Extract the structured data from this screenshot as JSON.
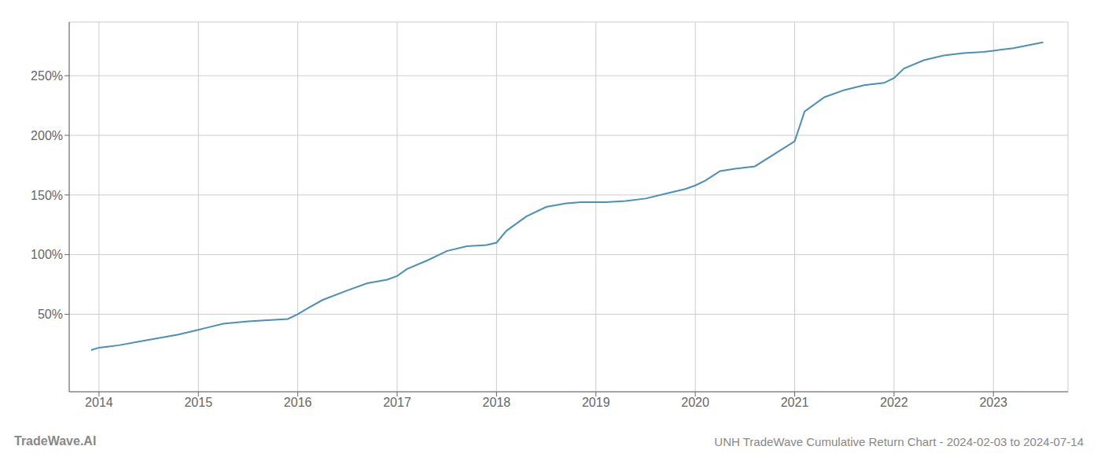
{
  "chart_data": {
    "type": "line",
    "title": "UNH TradeWave Cumulative Return Chart - 2024-02-03 to 2024-07-14",
    "annotations": [
      "TradeWave.AI"
    ],
    "color": "#4a90b8",
    "grid": true,
    "x": [
      2013.92,
      2014.0,
      2014.1,
      2014.2,
      2014.4,
      2014.6,
      2014.8,
      2015.0,
      2015.1,
      2015.25,
      2015.5,
      2015.7,
      2015.9,
      2016.0,
      2016.1,
      2016.25,
      2016.5,
      2016.7,
      2016.9,
      2017.0,
      2017.1,
      2017.3,
      2017.5,
      2017.7,
      2017.9,
      2018.0,
      2018.1,
      2018.3,
      2018.5,
      2018.7,
      2018.85,
      2019.0,
      2019.1,
      2019.3,
      2019.5,
      2019.7,
      2019.9,
      2020.0,
      2020.1,
      2020.25,
      2020.4,
      2020.6,
      2021.0,
      2021.1,
      2021.3,
      2021.5,
      2021.7,
      2021.9,
      2022.0,
      2022.1,
      2022.3,
      2022.5,
      2022.7,
      2022.9,
      2023.0,
      2023.2,
      2023.5
    ],
    "values": [
      20,
      22,
      23,
      24,
      27,
      30,
      33,
      37,
      39,
      42,
      44,
      45,
      46,
      50,
      55,
      62,
      70,
      76,
      79,
      82,
      88,
      95,
      103,
      107,
      108,
      110,
      120,
      132,
      140,
      143,
      144,
      144,
      144,
      145,
      147,
      151,
      155,
      158,
      162,
      170,
      172,
      174,
      195,
      220,
      232,
      238,
      242,
      244,
      248,
      256,
      263,
      267,
      269,
      270,
      271,
      273,
      278
    ],
    "xlim": [
      2013.7,
      2023.75
    ],
    "xticks": [
      2014,
      2015,
      2016,
      2017,
      2018,
      2019,
      2020,
      2021,
      2022,
      2023
    ],
    "ylim": [
      -15,
      295
    ],
    "yticks": [
      {
        "value": 50,
        "label": "50%"
      },
      {
        "value": 100,
        "label": "100%"
      },
      {
        "value": 150,
        "label": "150%"
      },
      {
        "value": 200,
        "label": "200%"
      },
      {
        "value": 250,
        "label": "250%"
      }
    ]
  }
}
